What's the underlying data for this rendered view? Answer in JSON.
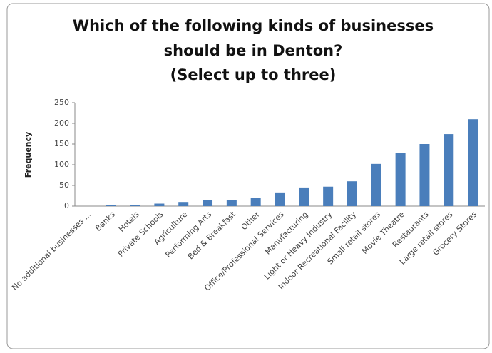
{
  "chart_data": {
    "type": "bar",
    "title": [
      "Which of the following kinds of businesses",
      "should be in Denton?",
      "(Select up to three)"
    ],
    "y_label": "Frequency",
    "categories": [
      "No additional businesses ...",
      "Banks",
      "Hotels",
      "Private Schools",
      "Agriculture",
      "Performing Arts",
      "Bed & Breakfast",
      "Other",
      "Office/Professional Services",
      "Manufacturing",
      "Light or Heavy Industry",
      "Indoor Recreational Facility",
      "Small retail stores",
      "Movie Theatre",
      "Restaurants",
      "Large retail stores",
      "Grocery Stores"
    ],
    "values": [
      0,
      3,
      3,
      6,
      10,
      14,
      15,
      19,
      33,
      45,
      47,
      60,
      102,
      128,
      150,
      174,
      210
    ],
    "color": "#4a7ebb",
    "ylim": [
      0,
      250
    ],
    "yticks": [
      0,
      50,
      100,
      150,
      200,
      250
    ],
    "grid": false
  }
}
